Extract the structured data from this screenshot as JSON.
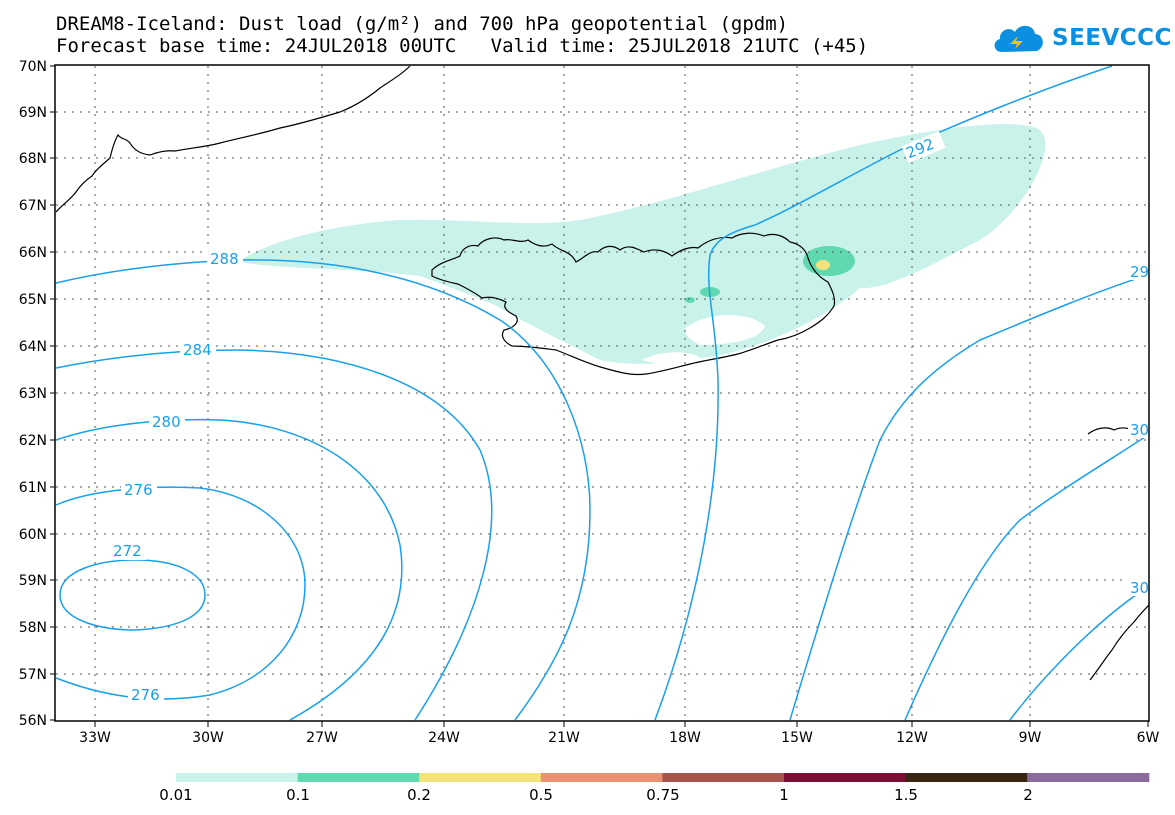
{
  "header": {
    "title_line1": "DREAM8-Iceland: Dust load (g/m²) and 700 hPa geopotential (gpdm)",
    "title_line2": "Forecast base time: 24JUL2018 00UTC   Valid time: 25JUL2018 21UTC (+45)"
  },
  "logo": {
    "text": "SEEVCCC",
    "icon": "cloud-icon"
  },
  "map": {
    "lat_labels": [
      "70N",
      "69N",
      "68N",
      "67N",
      "66N",
      "65N",
      "64N",
      "63N",
      "62N",
      "61N",
      "60N",
      "59N",
      "58N",
      "57N",
      "56N"
    ],
    "lon_labels": [
      "33W",
      "30W",
      "27W",
      "24W",
      "21W",
      "18W",
      "15W",
      "12W",
      "9W",
      "6W"
    ],
    "contour_labels": [
      "288",
      "284",
      "280",
      "276",
      "272",
      "276",
      "292",
      "29",
      "30",
      "30"
    ],
    "contour_color": "#1aa0ea"
  },
  "colorbar": {
    "colors": [
      "#c8f2ea",
      "#5fd9b0",
      "#f5e27a",
      "#e99170",
      "#a9544a",
      "#7a0f36",
      "#3a2412",
      "#8b6aa0"
    ],
    "labels": [
      "0.01",
      "0.1",
      "0.2",
      "0.5",
      "0.75",
      "1",
      "1.5",
      "2"
    ]
  }
}
